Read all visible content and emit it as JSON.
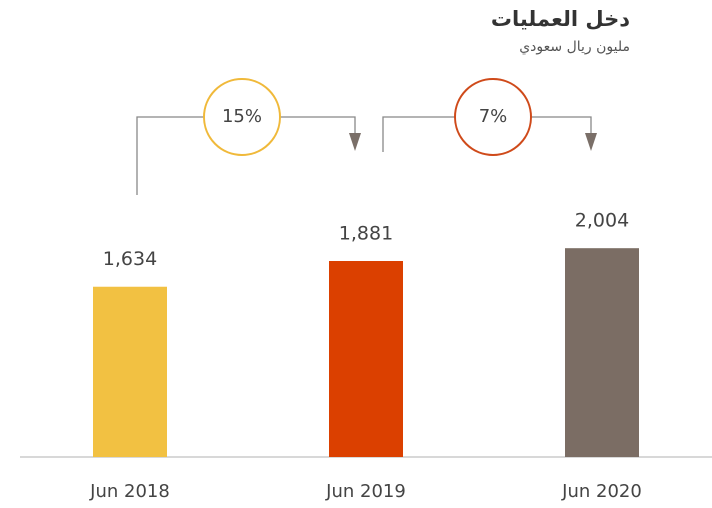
{
  "chart_data": {
    "type": "bar",
    "title": "دخل العمليات",
    "subtitle": "مليون ريال سعودي",
    "categories": [
      "Jun 2018",
      "Jun 2019",
      "Jun 2020"
    ],
    "values": [
      1634,
      1881,
      2004
    ],
    "value_labels": [
      "1,634",
      "1,881",
      "2,004"
    ],
    "colors": [
      "#f2c142",
      "#db4000",
      "#7b6d64"
    ],
    "annotations": [
      {
        "value": 15,
        "label": "15%",
        "color": "#f0b93a"
      },
      {
        "value": 7,
        "label": "7%",
        "color": "#cf4a1a"
      }
    ]
  }
}
